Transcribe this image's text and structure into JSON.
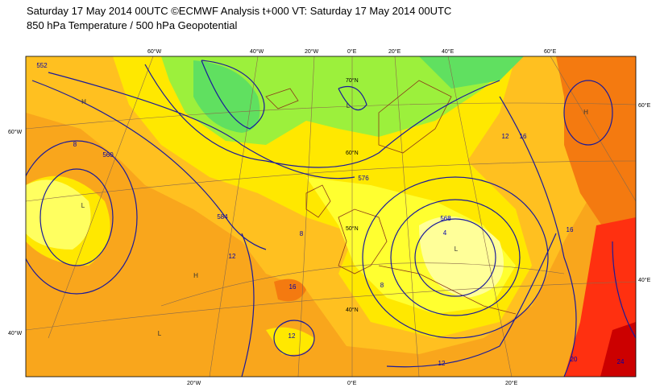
{
  "header": {
    "title": "Saturday 17 May 2014 00UTC ©ECMWF Analysis t+000 VT: Saturday 17 May 2014 00UTC",
    "subtitle": "850 hPa Temperature / 500 hPa Geopotential"
  },
  "map": {
    "lon_labels_top": [
      "60°W",
      "40°W",
      "20°W",
      "0°E",
      "20°E",
      "40°E",
      "60°E"
    ],
    "lon_labels_bottom": [
      "20°W",
      "0°E",
      "20°E"
    ],
    "left_labels": [
      "60°W",
      "40°W"
    ],
    "right_labels": [
      "60°E",
      "40°E"
    ],
    "inner_lat_labels": [
      "70°N",
      "60°N",
      "50°N",
      "40°N"
    ],
    "contour_labels": [
      "552",
      "8",
      "560",
      "584",
      "12",
      "8",
      "16",
      "12",
      "576",
      "568",
      "4",
      "8",
      "12",
      "12",
      "16",
      "16",
      "20",
      "24"
    ],
    "pressure_centers": [
      "H",
      "L",
      "L",
      "L",
      "H",
      "L",
      "H"
    ]
  }
}
